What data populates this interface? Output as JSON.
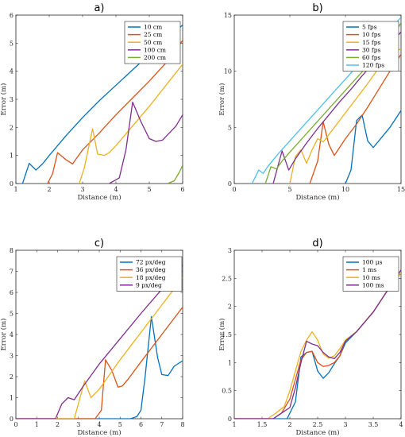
{
  "chart_data": [
    {
      "type": "line",
      "title": "a)",
      "xlabel": "Distance (m)",
      "ylabel": "Error (m)",
      "xlim": [
        1,
        6
      ],
      "ylim": [
        0,
        6
      ],
      "xticks": [
        1,
        2,
        3,
        4,
        5,
        6
      ],
      "yticks": [
        0,
        1,
        2,
        3,
        4,
        5,
        6
      ],
      "legend_position": "top-right",
      "series": [
        {
          "name": "10 cm",
          "color": "#0072BD",
          "x": [
            1.2,
            1.4,
            1.6,
            1.8,
            2.0,
            2.5,
            3.0,
            3.5,
            4.0,
            4.5,
            5.0,
            5.5,
            6.0
          ],
          "y": [
            0.0,
            0.72,
            0.48,
            0.7,
            1.0,
            1.7,
            2.35,
            2.95,
            3.5,
            4.05,
            4.6,
            5.1,
            5.65
          ]
        },
        {
          "name": "25 cm",
          "color": "#D95319",
          "x": [
            1.95,
            2.1,
            2.25,
            2.5,
            2.7,
            3.0,
            3.5,
            4.0,
            4.5,
            5.0,
            5.5,
            6.0
          ],
          "y": [
            0.0,
            0.35,
            1.1,
            0.85,
            0.7,
            1.2,
            1.8,
            2.45,
            3.05,
            3.65,
            4.3,
            5.1
          ]
        },
        {
          "name": "50 cm",
          "color": "#EDB120",
          "x": [
            2.9,
            3.05,
            3.3,
            3.45,
            3.65,
            3.8,
            4.0,
            4.5,
            5.0,
            5.5,
            6.0
          ],
          "y": [
            0.0,
            0.55,
            1.95,
            1.05,
            1.0,
            1.1,
            1.35,
            2.05,
            2.75,
            3.5,
            4.25
          ]
        },
        {
          "name": "100 cm",
          "color": "#7E2F8E",
          "x": [
            3.8,
            4.1,
            4.3,
            4.5,
            4.75,
            5.0,
            5.2,
            5.4,
            5.6,
            5.8,
            6.0
          ],
          "y": [
            0.0,
            0.2,
            1.2,
            2.9,
            2.2,
            1.6,
            1.5,
            1.55,
            1.8,
            2.05,
            2.45
          ]
        },
        {
          "name": "200 cm",
          "color": "#77AC30",
          "x": [
            5.55,
            5.75,
            5.9,
            6.0
          ],
          "y": [
            0.0,
            0.1,
            0.4,
            0.65
          ]
        }
      ]
    },
    {
      "type": "line",
      "title": "b)",
      "xlabel": "Distance (m)",
      "ylabel": "Error (m)",
      "xlim": [
        0,
        15
      ],
      "ylim": [
        0,
        15
      ],
      "xticks": [
        0,
        5,
        10,
        15
      ],
      "yticks": [
        0,
        5,
        10,
        15
      ],
      "legend_position": "top-right",
      "series": [
        {
          "name": "5 fps",
          "color": "#0072BD",
          "x": [
            10.0,
            10.5,
            11.0,
            11.5,
            12.0,
            12.5,
            13.0,
            14.0,
            15.0
          ],
          "y": [
            0.0,
            1.2,
            5.6,
            6.1,
            3.8,
            3.2,
            3.8,
            5.0,
            6.5
          ]
        },
        {
          "name": "10 fps",
          "color": "#D95319",
          "x": [
            6.8,
            7.5,
            8.0,
            8.5,
            9.0,
            10.0,
            11.0,
            12.0,
            13.0,
            14.0,
            15.0
          ],
          "y": [
            0.0,
            2.0,
            5.5,
            3.5,
            2.5,
            4.0,
            5.3,
            6.8,
            8.4,
            10.0,
            11.5
          ]
        },
        {
          "name": "15 fps",
          "color": "#EDB120",
          "x": [
            5.0,
            5.5,
            6.0,
            6.5,
            7.0,
            7.5,
            8.0,
            9.0,
            10.0,
            11.0,
            12.0,
            13.0,
            14.0,
            15.0
          ],
          "y": [
            0.0,
            2.4,
            3.0,
            1.8,
            3.0,
            4.0,
            3.7,
            5.0,
            6.3,
            7.6,
            8.9,
            10.3,
            11.5,
            12.0
          ]
        },
        {
          "name": "30 fps",
          "color": "#7E2F8E",
          "x": [
            3.5,
            4.3,
            4.9,
            5.5,
            6.5,
            7.5,
            8.5,
            9.5,
            10.5,
            11.5,
            12.5,
            13.5,
            15.0
          ],
          "y": [
            0.0,
            2.9,
            1.2,
            2.2,
            3.6,
            4.9,
            6.1,
            7.3,
            8.4,
            9.6,
            10.7,
            11.8,
            13.5
          ]
        },
        {
          "name": "60 fps",
          "color": "#77AC30",
          "x": [
            2.8,
            3.3,
            3.8,
            4.3,
            5.0,
            6.0,
            7.0,
            8.0,
            9.0,
            10.0,
            11.0,
            12.0,
            13.0,
            14.0,
            15.0
          ],
          "y": [
            0.0,
            1.5,
            1.3,
            2.0,
            2.8,
            3.9,
            5.0,
            6.1,
            7.2,
            8.3,
            9.4,
            10.5,
            11.6,
            12.8,
            14.3
          ]
        },
        {
          "name": "120 fps",
          "color": "#4DBEEE",
          "x": [
            1.6,
            2.2,
            2.6,
            3.0,
            4.0,
            5.0,
            6.0,
            7.0,
            8.0,
            9.0,
            10.0,
            11.0,
            12.0,
            13.0,
            14.0,
            15.0
          ],
          "y": [
            0.0,
            1.2,
            0.9,
            1.5,
            2.7,
            3.8,
            4.9,
            6.0,
            7.1,
            8.2,
            9.3,
            10.4,
            11.5,
            12.6,
            13.7,
            14.8
          ]
        }
      ]
    },
    {
      "type": "line",
      "title": "c)",
      "xlabel": "Distance (m)",
      "ylabel": "Error (m)",
      "xlim": [
        0,
        8
      ],
      "ylim": [
        0,
        8
      ],
      "xticks": [
        0,
        1,
        2,
        3,
        4,
        5,
        6,
        7,
        8
      ],
      "yticks": [
        0,
        1,
        2,
        3,
        4,
        5,
        6,
        7,
        8
      ],
      "legend_position": "top-left",
      "series": [
        {
          "name": "72 px/deg",
          "color": "#0072BD",
          "x": [
            0.0,
            5.5,
            5.8,
            6.0,
            6.2,
            6.5,
            6.8,
            7.0,
            7.3,
            7.6,
            8.0
          ],
          "y": [
            0.0,
            0.0,
            0.1,
            0.4,
            2.0,
            4.85,
            2.9,
            2.1,
            2.05,
            2.5,
            2.75
          ]
        },
        {
          "name": "36 px/deg",
          "color": "#D95319",
          "x": [
            0.0,
            3.8,
            4.1,
            4.3,
            4.6,
            4.9,
            5.1,
            5.4,
            6.0,
            6.5,
            7.0,
            7.5,
            8.0
          ],
          "y": [
            0.0,
            0.0,
            0.4,
            2.8,
            2.3,
            1.5,
            1.55,
            1.9,
            2.7,
            3.35,
            4.0,
            4.65,
            5.3
          ]
        },
        {
          "name": "18 px/deg",
          "color": "#EDB120",
          "x": [
            0.0,
            2.8,
            3.3,
            3.6,
            4.0,
            4.5,
            5.0,
            5.5,
            6.0,
            6.5,
            7.0,
            7.5,
            8.0
          ],
          "y": [
            0.0,
            0.0,
            1.8,
            1.0,
            1.4,
            2.1,
            2.8,
            3.45,
            4.1,
            4.75,
            5.4,
            6.05,
            6.7
          ]
        },
        {
          "name": "9 px/deg",
          "color": "#7E2F8E",
          "x": [
            0.0,
            1.9,
            2.2,
            2.5,
            2.8,
            3.2,
            4.0,
            5.0,
            6.0,
            7.0,
            8.0
          ],
          "y": [
            0.0,
            0.0,
            0.7,
            1.0,
            0.9,
            1.5,
            2.6,
            3.8,
            5.0,
            6.15,
            7.3
          ]
        }
      ]
    },
    {
      "type": "line",
      "title": "d)",
      "xlabel": "Distance (m)",
      "ylabel": "Error (m)",
      "xlim": [
        1,
        4
      ],
      "ylim": [
        0,
        3
      ],
      "xticks": [
        1,
        1.5,
        2,
        2.5,
        3,
        3.5,
        4
      ],
      "yticks": [
        0,
        0.5,
        1,
        1.5,
        2,
        2.5,
        3
      ],
      "legend_position": "top-left",
      "series": [
        {
          "name": "100 μs",
          "color": "#0072BD",
          "x": [
            1.0,
            1.95,
            2.1,
            2.2,
            2.3,
            2.4,
            2.5,
            2.6,
            2.7,
            2.8,
            2.9,
            3.0,
            3.2,
            3.5,
            3.8,
            4.0
          ],
          "y": [
            0.0,
            0.0,
            0.3,
            1.1,
            1.18,
            1.2,
            0.85,
            0.72,
            0.82,
            0.98,
            1.12,
            1.35,
            1.55,
            1.9,
            2.35,
            2.6
          ]
        },
        {
          "name": "1 ms",
          "color": "#D95319",
          "x": [
            1.0,
            1.7,
            1.85,
            2.0,
            2.1,
            2.2,
            2.3,
            2.4,
            2.5,
            2.6,
            2.7,
            2.8,
            2.9,
            3.0,
            3.2,
            3.5,
            3.8,
            4.0
          ],
          "y": [
            0.0,
            0.0,
            0.1,
            0.35,
            0.7,
            1.05,
            1.18,
            1.2,
            1.0,
            0.93,
            0.95,
            1.0,
            1.12,
            1.4,
            1.55,
            1.9,
            2.35,
            2.6
          ]
        },
        {
          "name": "10 ms",
          "color": "#EDB120",
          "x": [
            1.0,
            1.6,
            1.75,
            1.9,
            2.0,
            2.1,
            2.2,
            2.3,
            2.4,
            2.5,
            2.6,
            2.7,
            2.8,
            2.9,
            3.0,
            3.2,
            3.5,
            3.8,
            4.0
          ],
          "y": [
            0.0,
            0.0,
            0.1,
            0.22,
            0.5,
            0.85,
            1.2,
            1.4,
            1.55,
            1.4,
            1.15,
            1.08,
            1.12,
            1.25,
            1.4,
            1.55,
            1.9,
            2.35,
            2.6
          ]
        },
        {
          "name": "100 ms",
          "color": "#7E2F8E",
          "x": [
            1.0,
            1.7,
            1.85,
            2.0,
            2.1,
            2.2,
            2.3,
            2.4,
            2.5,
            2.6,
            2.7,
            2.8,
            2.9,
            3.0,
            3.2,
            3.5,
            3.8,
            4.0
          ],
          "y": [
            0.0,
            0.0,
            0.1,
            0.2,
            0.55,
            1.0,
            1.38,
            1.33,
            1.3,
            1.18,
            1.1,
            1.07,
            1.18,
            1.38,
            1.55,
            1.9,
            2.35,
            2.65
          ]
        }
      ]
    }
  ]
}
